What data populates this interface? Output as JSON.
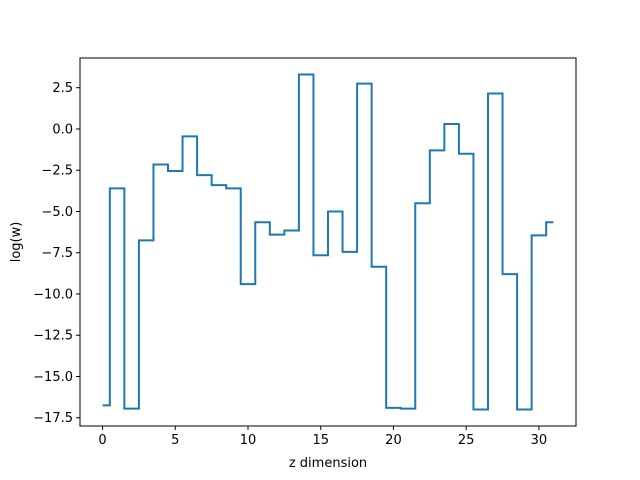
{
  "chart_data": {
    "type": "line",
    "drawstyle": "steps-mid",
    "title": "",
    "xlabel": "z dimension",
    "ylabel": "log(w)",
    "xlim": [
      -1.55,
      32.55
    ],
    "ylim": [
      -18.0,
      4.3
    ],
    "grid": false,
    "legend": "none",
    "x_ticks": [
      0,
      5,
      10,
      15,
      20,
      25,
      30
    ],
    "y_ticks": [
      -17.5,
      -15.0,
      -12.5,
      -10.0,
      -7.5,
      -5.0,
      -2.5,
      0.0,
      2.5
    ],
    "x_tick_labels": [
      "0",
      "5",
      "10",
      "15",
      "20",
      "25",
      "30"
    ],
    "y_tick_labels": [
      "−17.5",
      "−15.0",
      "−12.5",
      "−10.0",
      "−7.5",
      "−5.0",
      "−2.5",
      "0.0",
      "2.5"
    ],
    "series": [
      {
        "color": "#1f77b4",
        "x": [
          0,
          1,
          2,
          3,
          4,
          5,
          6,
          7,
          8,
          9,
          10,
          11,
          12,
          13,
          14,
          15,
          16,
          17,
          18,
          19,
          20,
          21,
          22,
          23,
          24,
          25,
          26,
          27,
          28,
          29,
          30,
          31
        ],
        "values": [
          -16.75,
          -3.6,
          -16.95,
          -6.75,
          -2.15,
          -2.55,
          -0.45,
          -2.8,
          -3.4,
          -3.6,
          -9.4,
          -5.65,
          -6.4,
          -6.15,
          3.3,
          -7.65,
          -5.0,
          -7.45,
          2.75,
          -8.35,
          -16.9,
          -16.95,
          -4.5,
          -1.3,
          0.3,
          -1.5,
          -17.0,
          2.15,
          -8.8,
          -17.0,
          -6.45,
          -5.65
        ]
      }
    ]
  }
}
